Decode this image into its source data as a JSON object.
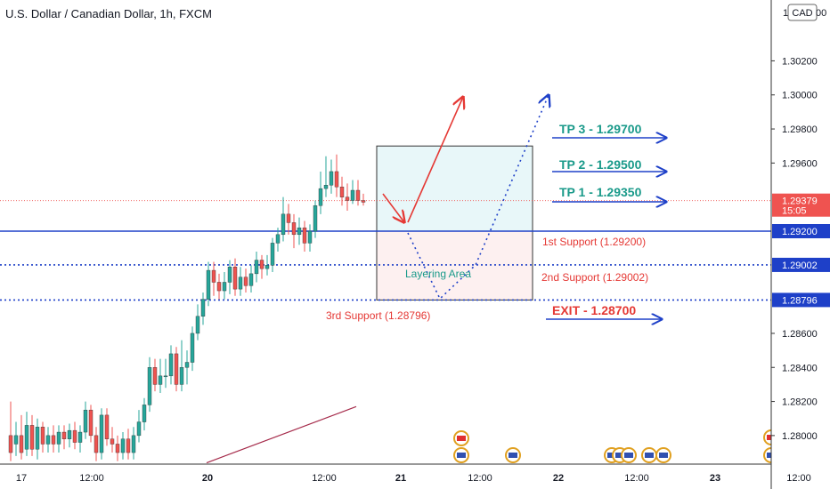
{
  "header": {
    "title": "U.S. Dollar / Canadian Dollar, 1h, FXCM"
  },
  "currency_badge": "CAD",
  "colors": {
    "up": "#26a69a",
    "down": "#ef5350",
    "blue": "#1e40c8",
    "red_text": "#e53935",
    "teal_text": "#1a9a8a",
    "box_top_fill": "#e8f7f9",
    "box_bottom_fill": "#fdf0f0",
    "ma_line": "#a52a4a"
  },
  "chart_data": {
    "type": "candlestick",
    "title": "U.S. Dollar / Canadian Dollar, 1h, FXCM",
    "ylim": [
      1.2792,
      1.3042
    ],
    "price_ticks": [
      "1.30200",
      "1.30000",
      "1.29800",
      "1.29600",
      "1.28600",
      "1.28400",
      "1.28200",
      "1.28000"
    ],
    "time_ticks": [
      "17",
      "12:00",
      "20",
      "12:00",
      "21",
      "12:00",
      "22",
      "12:00",
      "23",
      "12:00"
    ],
    "price_badges": [
      {
        "label": "1.29379",
        "sub": "15:05",
        "price": 1.29379,
        "color": "#ef5350"
      },
      {
        "label": "1.29200",
        "price": 1.292,
        "color": "#1e40c8"
      },
      {
        "label": "1.29002",
        "price": 1.29002,
        "color": "#1e40c8"
      },
      {
        "label": "1.28796",
        "price": 1.28796,
        "color": "#1e40c8"
      }
    ],
    "levels": [
      {
        "price": 1.292,
        "style": "solid"
      },
      {
        "price": 1.29002,
        "style": "dotted"
      },
      {
        "price": 1.28796,
        "style": "dotted"
      }
    ],
    "current_price": 1.29379,
    "zone": {
      "top": 1.297,
      "mid": 1.292,
      "bottom": 1.28796,
      "label": "Layering Area"
    },
    "annotations": {
      "support1": "1st Support (1.29200)",
      "support2": "2nd Support (1.29002)",
      "support3": "3rd Support (1.28796)",
      "tp3": "TP 3 - 1.29700",
      "tp2": "TP 2 - 1.29500",
      "tp1": "TP 1 - 1.29350",
      "exit": "EXIT - 1.28700"
    },
    "candles": [
      [
        1.28,
        1.279,
        1.282,
        1.2785
      ],
      [
        1.2795,
        1.28,
        1.2808,
        1.2788
      ],
      [
        1.28,
        1.279,
        1.2812,
        1.2786
      ],
      [
        1.2792,
        1.2806,
        1.2814,
        1.2788
      ],
      [
        1.2806,
        1.2792,
        1.2812,
        1.2788
      ],
      [
        1.2792,
        1.2805,
        1.281,
        1.2786
      ],
      [
        1.2805,
        1.2795,
        1.2808,
        1.279
      ],
      [
        1.2795,
        1.28,
        1.2805,
        1.279
      ],
      [
        1.28,
        1.2795,
        1.2806,
        1.279
      ],
      [
        1.2795,
        1.2802,
        1.2806,
        1.279
      ],
      [
        1.2802,
        1.2798,
        1.2806,
        1.2792
      ],
      [
        1.2798,
        1.2803,
        1.2807,
        1.2793
      ],
      [
        1.2803,
        1.2796,
        1.2808,
        1.2792
      ],
      [
        1.2796,
        1.2802,
        1.2806,
        1.279
      ],
      [
        1.2802,
        1.2815,
        1.282,
        1.2798
      ],
      [
        1.2815,
        1.28,
        1.2818,
        1.2796
      ],
      [
        1.28,
        1.279,
        1.2805,
        1.2785
      ],
      [
        1.279,
        1.2812,
        1.2816,
        1.2786
      ],
      [
        1.2812,
        1.2798,
        1.2816,
        1.2794
      ],
      [
        1.2798,
        1.2795,
        1.2805,
        1.279
      ],
      [
        1.2795,
        1.279,
        1.28,
        1.2785
      ],
      [
        1.279,
        1.2798,
        1.2802,
        1.2786
      ],
      [
        1.2798,
        1.279,
        1.2804,
        1.2786
      ],
      [
        1.279,
        1.28,
        1.2805,
        1.2786
      ],
      [
        1.28,
        1.2808,
        1.2815,
        1.2796
      ],
      [
        1.2808,
        1.2818,
        1.2822,
        1.2803
      ],
      [
        1.2818,
        1.284,
        1.2846,
        1.2814
      ],
      [
        1.284,
        1.283,
        1.2845,
        1.2826
      ],
      [
        1.283,
        1.2835,
        1.2845,
        1.2825
      ],
      [
        1.2835,
        1.2835,
        1.2845,
        1.2828
      ],
      [
        1.2835,
        1.2848,
        1.2853,
        1.283
      ],
      [
        1.2848,
        1.283,
        1.2852,
        1.2826
      ],
      [
        1.283,
        1.284,
        1.2856,
        1.2826
      ],
      [
        1.284,
        1.2843,
        1.285,
        1.283
      ],
      [
        1.2843,
        1.286,
        1.2864,
        1.2838
      ],
      [
        1.286,
        1.287,
        1.2877,
        1.2856
      ],
      [
        1.287,
        1.288,
        1.2884,
        1.2865
      ],
      [
        1.288,
        1.2897,
        1.2902,
        1.2876
      ],
      [
        1.2897,
        1.289,
        1.2902,
        1.2882
      ],
      [
        1.289,
        1.2885,
        1.2895,
        1.288
      ],
      [
        1.2885,
        1.289,
        1.2896,
        1.288
      ],
      [
        1.289,
        1.2899,
        1.2903,
        1.2883
      ],
      [
        1.2899,
        1.2886,
        1.2904,
        1.2882
      ],
      [
        1.2886,
        1.2893,
        1.2899,
        1.2882
      ],
      [
        1.2893,
        1.2888,
        1.2898,
        1.2884
      ],
      [
        1.2888,
        1.2895,
        1.29,
        1.2884
      ],
      [
        1.2895,
        1.2903,
        1.2908,
        1.289
      ],
      [
        1.2903,
        1.2898,
        1.2906,
        1.2892
      ],
      [
        1.2898,
        1.29,
        1.2906,
        1.2894
      ],
      [
        1.29,
        1.2913,
        1.2916,
        1.2896
      ],
      [
        1.2913,
        1.2918,
        1.2922,
        1.2908
      ],
      [
        1.2918,
        1.293,
        1.294,
        1.2914
      ],
      [
        1.293,
        1.2925,
        1.2936,
        1.2918
      ],
      [
        1.2925,
        1.2918,
        1.293,
        1.291
      ],
      [
        1.2918,
        1.2922,
        1.2928,
        1.2912
      ],
      [
        1.2922,
        1.2913,
        1.2926,
        1.2908
      ],
      [
        1.2913,
        1.292,
        1.2924,
        1.2908
      ],
      [
        1.292,
        1.2935,
        1.2938,
        1.2916
      ],
      [
        1.2935,
        1.2945,
        1.2955,
        1.293
      ],
      [
        1.2945,
        1.2947,
        1.2964,
        1.294
      ],
      [
        1.2947,
        1.2955,
        1.2962,
        1.2942
      ],
      [
        1.2955,
        1.2946,
        1.2965,
        1.294
      ],
      [
        1.2946,
        1.294,
        1.2952,
        1.2935
      ],
      [
        1.294,
        1.2938,
        1.2948,
        1.2932
      ],
      [
        1.2938,
        1.2944,
        1.295,
        1.2936
      ],
      [
        1.2944,
        1.2938,
        1.295,
        1.2935
      ],
      [
        1.2938,
        1.2937,
        1.2942,
        1.2935
      ]
    ],
    "ma_line": [
      [
        1.2784,
        1.2788
      ],
      [
        1.2808,
        1.2817
      ]
    ]
  }
}
